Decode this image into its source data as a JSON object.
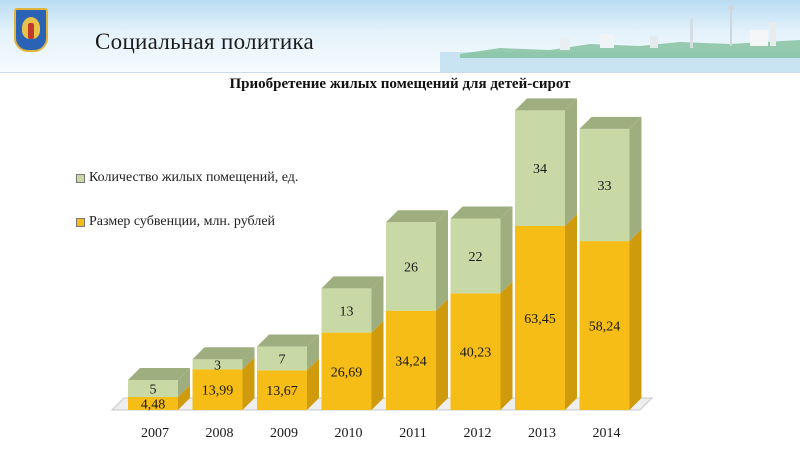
{
  "header": {
    "title": "Социальная политика"
  },
  "colors": {
    "subsidy": "#f5bd16",
    "subsidy_dark": "#cf9a0c",
    "count": "#c9d9a6",
    "count_dark": "#9fae7e"
  },
  "chart_data": {
    "type": "bar",
    "stacked": true,
    "title": "Приобретение жилых помещений для детей-сирот",
    "categories": [
      "2007",
      "2008",
      "2009",
      "2010",
      "2011",
      "2012",
      "2013",
      "2014"
    ],
    "series": [
      {
        "name": "Размер субвенции, млн. рублей",
        "values": [
          4.48,
          13.99,
          13.67,
          26.69,
          34.24,
          40.23,
          63.45,
          58.24
        ],
        "labels": [
          "4,48",
          "13,99",
          "13,67",
          "26,69",
          "34,24",
          "40,23",
          "63,45",
          "58,24"
        ]
      },
      {
        "name": "Количество жилых помещений, ед.",
        "values": [
          5,
          3,
          7,
          13,
          26,
          22,
          34,
          33
        ],
        "labels": [
          "5",
          "3",
          "7",
          "13",
          "26",
          "22",
          "34",
          "33"
        ]
      }
    ],
    "legend": {
      "position": "left",
      "items": [
        "Количество жилых помещений, ед.",
        "Размер субвенции, млн. рублей"
      ]
    },
    "grid": false
  }
}
